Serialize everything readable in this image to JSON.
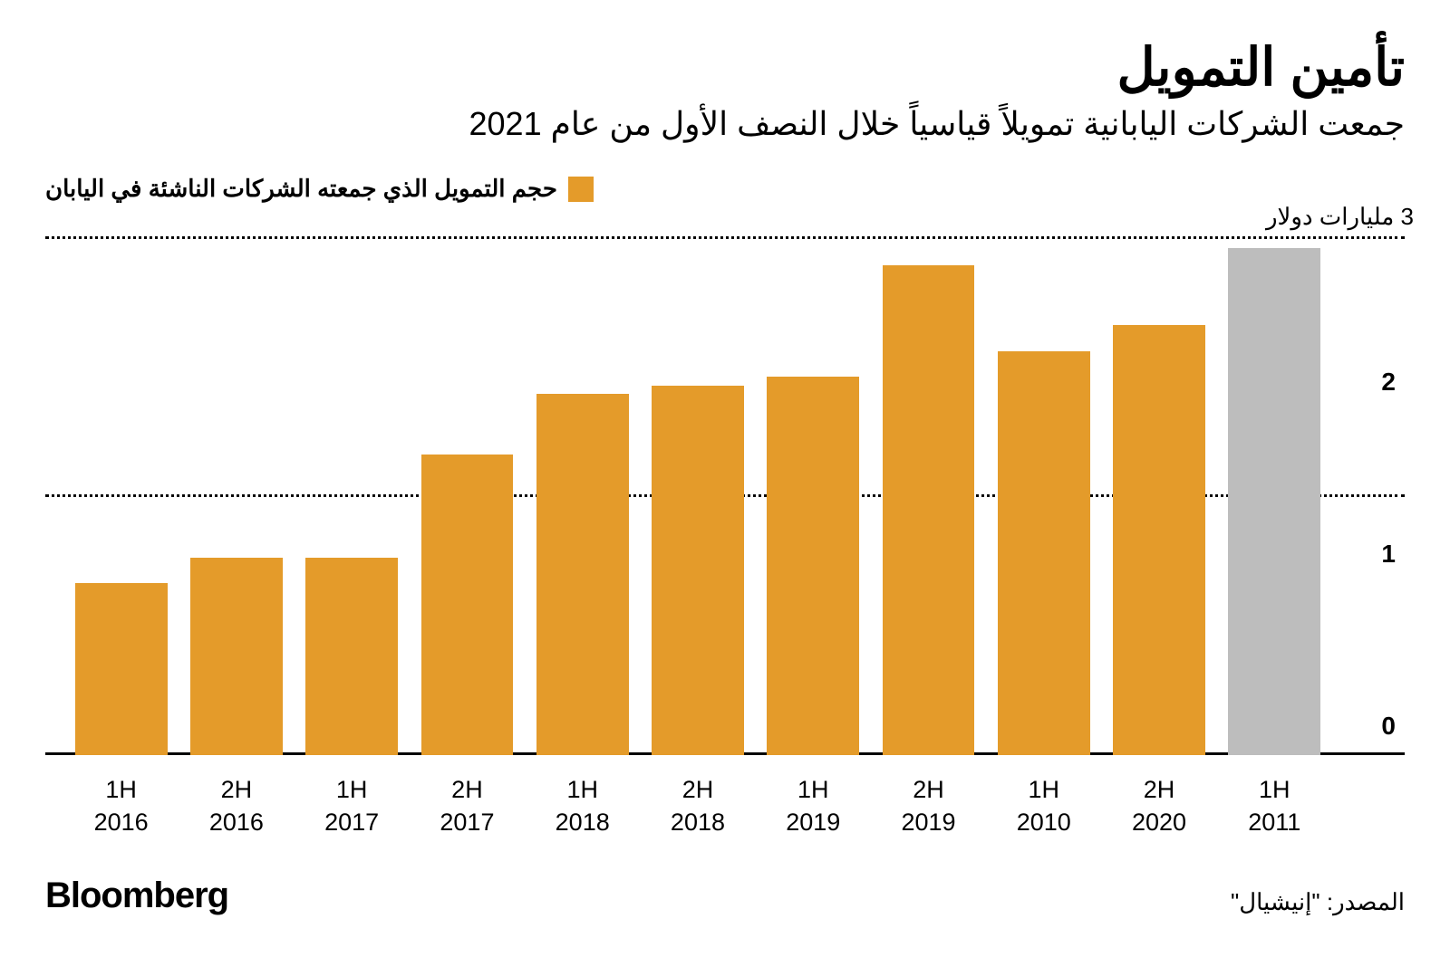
{
  "title": "تأمين التمويل",
  "subtitle": "جمعت الشركات اليابانية تمويلاً قياسياً خلال النصف الأول من عام 2021",
  "legend": {
    "swatch_color": "#e49b2a",
    "label": "حجم التمويل الذي جمعته الشركات الناشئة في اليابان"
  },
  "chart": {
    "type": "bar",
    "y_unit_label": "3 مليارات دولار",
    "ylim": [
      0,
      3
    ],
    "yticks": [
      {
        "value": 0,
        "label": "0"
      },
      {
        "value": 1,
        "label": "1"
      },
      {
        "value": 2,
        "label": "2"
      }
    ],
    "gridlines_at": [
      1.5,
      3
    ],
    "baseline_color": "#000000",
    "grid_color": "#000000",
    "background_color": "#ffffff",
    "bar_width_pct": 80,
    "bars": [
      {
        "label_top": "1H",
        "label_bottom": "2016",
        "value": 1.0,
        "color": "#e49b2a"
      },
      {
        "label_top": "2H",
        "label_bottom": "2016",
        "value": 1.15,
        "color": "#e49b2a"
      },
      {
        "label_top": "1H",
        "label_bottom": "2017",
        "value": 1.15,
        "color": "#e49b2a"
      },
      {
        "label_top": "2H",
        "label_bottom": "2017",
        "value": 1.75,
        "color": "#e49b2a"
      },
      {
        "label_top": "1H",
        "label_bottom": "2018",
        "value": 2.1,
        "color": "#e49b2a"
      },
      {
        "label_top": "2H",
        "label_bottom": "2018",
        "value": 2.15,
        "color": "#e49b2a"
      },
      {
        "label_top": "1H",
        "label_bottom": "2019",
        "value": 2.2,
        "color": "#e49b2a"
      },
      {
        "label_top": "2H",
        "label_bottom": "2019",
        "value": 2.85,
        "color": "#e49b2a"
      },
      {
        "label_top": "1H",
        "label_bottom": "2010",
        "value": 2.35,
        "color": "#e49b2a"
      },
      {
        "label_top": "2H",
        "label_bottom": "2020",
        "value": 2.5,
        "color": "#e49b2a"
      },
      {
        "label_top": "1H",
        "label_bottom": "2011",
        "value": 2.95,
        "color": "#bdbdbd"
      }
    ]
  },
  "footer": {
    "brand": "Bloomberg",
    "source": "المصدر: \"إنيشيال\""
  }
}
